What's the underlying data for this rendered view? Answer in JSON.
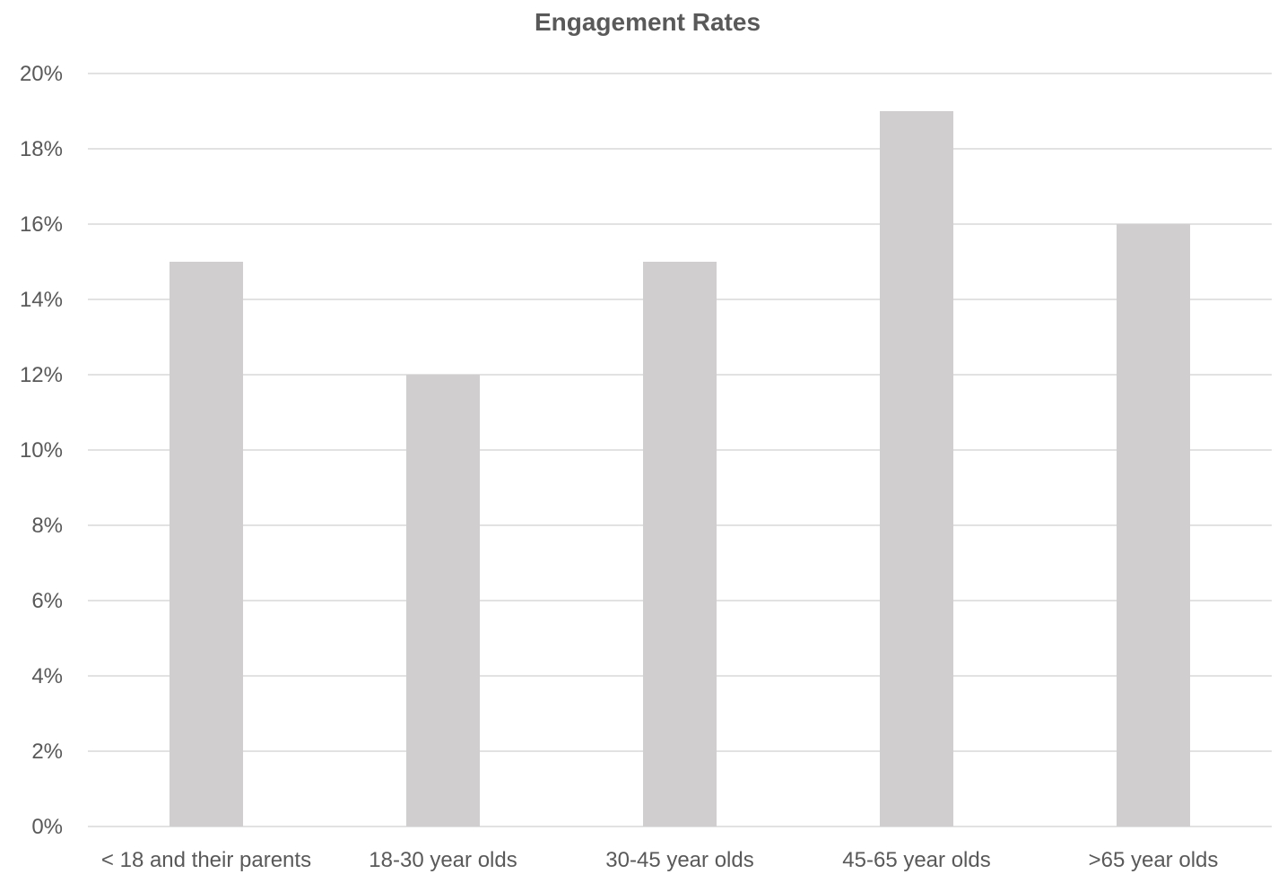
{
  "chart_data": {
    "type": "bar",
    "title": "Engagement Rates",
    "xlabel": "",
    "ylabel": "",
    "categories": [
      "< 18 and their parents",
      "18-30 year olds",
      "30-45 year olds",
      "45-65 year olds",
      ">65 year olds"
    ],
    "values": [
      15,
      12,
      15,
      19,
      16
    ],
    "value_unit": "%",
    "ylim": [
      0,
      20
    ],
    "y_ticks": [
      "0%",
      "2%",
      "4%",
      "6%",
      "8%",
      "10%",
      "12%",
      "14%",
      "16%",
      "18%",
      "20%"
    ],
    "y_tick_values": [
      0,
      2,
      4,
      6,
      8,
      10,
      12,
      14,
      16,
      18,
      20
    ],
    "grid": true,
    "legend": "none",
    "bar_color": "#d0cece",
    "grid_color": "#d9d9d9",
    "text_color": "#595959"
  }
}
